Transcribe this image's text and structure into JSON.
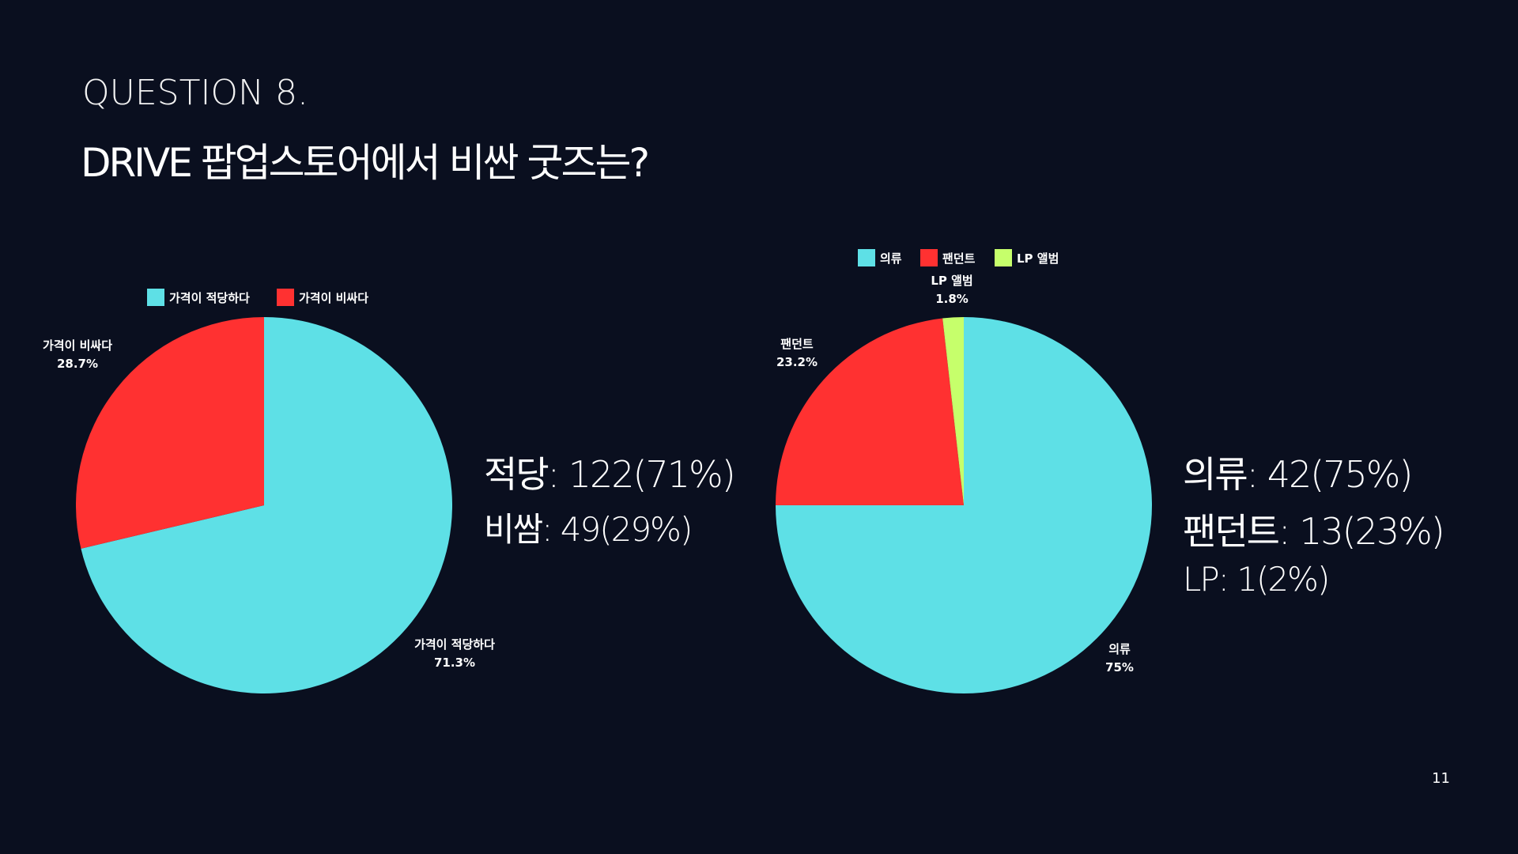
{
  "slide": {
    "question_label": "QUESTION 8.",
    "title": "DRIVE 팝업스토어에서 비싼 굿즈는?",
    "page_number": "11"
  },
  "colors": {
    "background": "#0a0f1f",
    "cyan": "#5ee0e6",
    "red": "#ff3131",
    "lime": "#c6ff6b"
  },
  "chart_data": [
    {
      "type": "pie",
      "title": "",
      "legend": [
        "가격이 적당하다",
        "가격이 비싸다"
      ],
      "legend_position": "top",
      "slices": [
        {
          "label": "가격이 적당하다",
          "value": 71.3,
          "value_label": "71.3%",
          "color": "#5ee0e6"
        },
        {
          "label": "가격이 비싸다",
          "value": 28.7,
          "value_label": "28.7%",
          "color": "#ff3131"
        }
      ],
      "summary": [
        "적당: 122(71%)",
        "비쌈: 49(29%)"
      ]
    },
    {
      "type": "pie",
      "title": "",
      "legend": [
        "의류",
        "팬던트",
        "LP 앨범"
      ],
      "legend_position": "top",
      "slices": [
        {
          "label": "의류",
          "value": 75,
          "value_label": "75%",
          "color": "#5ee0e6"
        },
        {
          "label": "팬던트",
          "value": 23.2,
          "value_label": "23.2%",
          "color": "#ff3131"
        },
        {
          "label": "LP 앨범",
          "value": 1.8,
          "value_label": "1.8%",
          "color": "#c6ff6b"
        }
      ],
      "summary": [
        "의류: 42(75%)",
        "팬던트: 13(23%)",
        "LP: 1(2%)"
      ]
    }
  ]
}
